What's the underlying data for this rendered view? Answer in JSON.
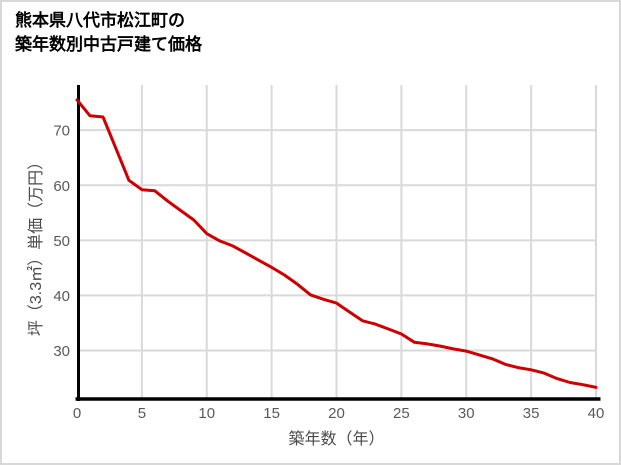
{
  "title": {
    "line1": "熊本県八代市松江町の",
    "line2": "築年数別中古戸建て価格"
  },
  "chart_data": {
    "type": "line",
    "title": "熊本県八代市松江町の築年数別中古戸建て価格",
    "xlabel": "築年数（年）",
    "ylabel": "坪（3.3㎡）単価（万円）",
    "x": [
      0,
      1,
      2,
      3,
      4,
      5,
      6,
      7,
      8,
      9,
      10,
      11,
      12,
      13,
      14,
      15,
      16,
      17,
      18,
      19,
      20,
      21,
      22,
      23,
      24,
      25,
      26,
      27,
      28,
      29,
      30,
      31,
      32,
      33,
      34,
      35,
      36,
      37,
      38,
      39,
      40
    ],
    "values": [
      75.5,
      72.6,
      72.4,
      66.7,
      60.9,
      59.2,
      59.0,
      57.1,
      55.4,
      53.7,
      51.2,
      49.9,
      49.0,
      47.7,
      46.4,
      45.1,
      43.7,
      42.0,
      40.1,
      39.3,
      38.6,
      37.0,
      35.4,
      34.8,
      33.9,
      33.0,
      31.5,
      31.2,
      30.8,
      30.3,
      29.9,
      29.2,
      28.5,
      27.5,
      26.9,
      26.5,
      25.9,
      24.9,
      24.2,
      23.8,
      23.3
    ],
    "x_ticks": [
      0,
      5,
      10,
      15,
      20,
      25,
      30,
      35,
      40
    ],
    "y_ticks": [
      30,
      40,
      50,
      60,
      70
    ],
    "xlim": [
      0,
      40
    ],
    "ylim": [
      21.2,
      78.2
    ],
    "grid": true,
    "legend": false,
    "line_color": "#cc0000",
    "grid_color": "#d9d9d9",
    "axis_color": "#000000",
    "tick_label_color": "#595959"
  }
}
